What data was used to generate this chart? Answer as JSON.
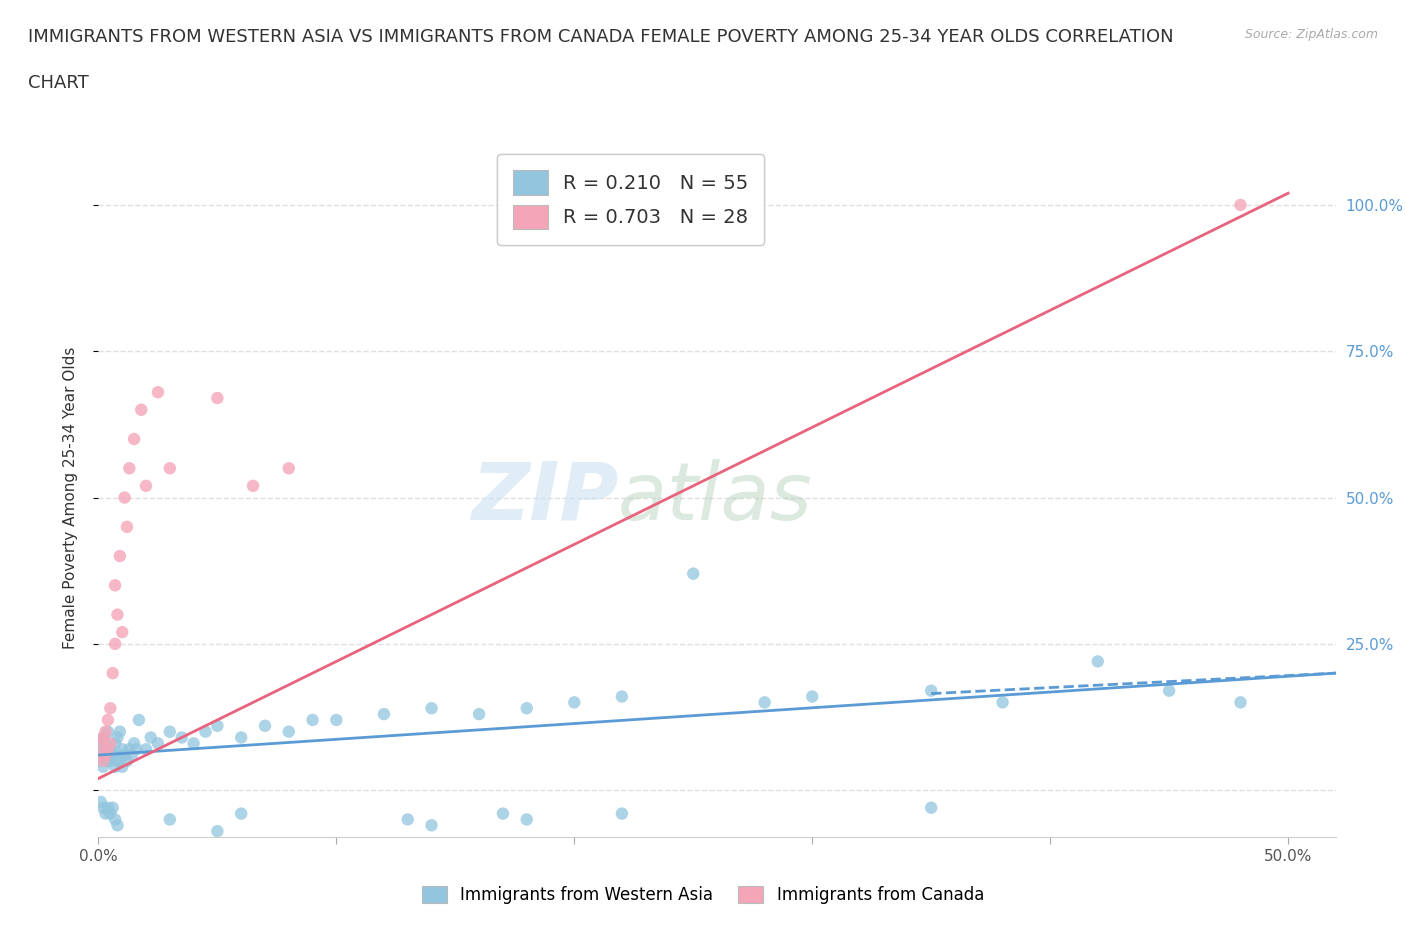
{
  "title_line1": "IMMIGRANTS FROM WESTERN ASIA VS IMMIGRANTS FROM CANADA FEMALE POVERTY AMONG 25-34 YEAR OLDS CORRELATION",
  "title_line2": "CHART",
  "source": "Source: ZipAtlas.com",
  "ylabel": "Female Poverty Among 25-34 Year Olds",
  "xlim": [
    0.0,
    0.52
  ],
  "ylim": [
    -0.08,
    1.08
  ],
  "yticks_right": [
    0.25,
    0.5,
    0.75,
    1.0
  ],
  "ytick_labels_right": [
    "25.0%",
    "50.0%",
    "75.0%",
    "100.0%"
  ],
  "color_blue": "#92c5de",
  "color_pink": "#f4a6b8",
  "color_line_blue": "#5b9bd5",
  "color_line_pink": "#e8637e",
  "watermark_zip": "ZIP",
  "watermark_atlas": "atlas",
  "grid_color": "#e0e0e0",
  "background_color": "#ffffff",
  "title_fontsize": 13,
  "axis_label_fontsize": 11,
  "tick_fontsize": 11,
  "legend_fontsize": 14,
  "blue_x": [
    0.001,
    0.001,
    0.001,
    0.002,
    0.002,
    0.002,
    0.003,
    0.003,
    0.004,
    0.004,
    0.005,
    0.005,
    0.006,
    0.007,
    0.007,
    0.008,
    0.008,
    0.009,
    0.009,
    0.01,
    0.01,
    0.011,
    0.012,
    0.013,
    0.014,
    0.015,
    0.016,
    0.017,
    0.02,
    0.022,
    0.025,
    0.03,
    0.035,
    0.04,
    0.045,
    0.05,
    0.06,
    0.07,
    0.08,
    0.09,
    0.1,
    0.12,
    0.14,
    0.16,
    0.18,
    0.2,
    0.22,
    0.25,
    0.28,
    0.3,
    0.35,
    0.38,
    0.42,
    0.45,
    0.48
  ],
  "blue_y": [
    0.05,
    0.06,
    0.08,
    0.04,
    0.07,
    0.09,
    0.05,
    0.08,
    0.06,
    0.1,
    0.05,
    0.07,
    0.06,
    0.04,
    0.08,
    0.05,
    0.09,
    0.06,
    0.1,
    0.04,
    0.07,
    0.06,
    0.05,
    0.07,
    0.06,
    0.08,
    0.07,
    0.12,
    0.07,
    0.09,
    0.08,
    0.1,
    0.09,
    0.08,
    0.1,
    0.11,
    0.09,
    0.11,
    0.1,
    0.12,
    0.12,
    0.13,
    0.14,
    0.13,
    0.14,
    0.15,
    0.16,
    0.37,
    0.15,
    0.16,
    0.17,
    0.15,
    0.22,
    0.17,
    0.15
  ],
  "blue_extra_x": [
    0.001,
    0.002,
    0.003,
    0.004,
    0.005,
    0.006,
    0.007,
    0.008,
    0.03,
    0.05,
    0.06,
    0.13,
    0.14,
    0.17,
    0.18,
    0.22,
    0.35
  ],
  "blue_extra_y": [
    -0.02,
    -0.03,
    -0.04,
    -0.03,
    -0.04,
    -0.03,
    -0.05,
    -0.06,
    -0.05,
    -0.07,
    -0.04,
    -0.05,
    -0.06,
    -0.04,
    -0.05,
    -0.04,
    -0.03
  ],
  "pink_x": [
    0.001,
    0.001,
    0.002,
    0.002,
    0.003,
    0.003,
    0.004,
    0.004,
    0.005,
    0.005,
    0.006,
    0.007,
    0.007,
    0.008,
    0.009,
    0.01,
    0.011,
    0.012,
    0.013,
    0.015,
    0.018,
    0.02,
    0.025,
    0.03,
    0.05,
    0.065,
    0.08,
    0.48
  ],
  "pink_y": [
    0.06,
    0.08,
    0.05,
    0.09,
    0.06,
    0.1,
    0.07,
    0.12,
    0.08,
    0.14,
    0.2,
    0.25,
    0.35,
    0.3,
    0.4,
    0.27,
    0.5,
    0.45,
    0.55,
    0.6,
    0.65,
    0.52,
    0.68,
    0.55,
    0.67,
    0.52,
    0.55,
    1.0
  ],
  "blue_trend_x0": 0.0,
  "blue_trend_x1": 0.52,
  "blue_trend_y0": 0.06,
  "blue_trend_y1": 0.2,
  "pink_trend_x0": 0.0,
  "pink_trend_x1": 0.5,
  "pink_trend_y0": 0.02,
  "pink_trend_y1": 1.02
}
